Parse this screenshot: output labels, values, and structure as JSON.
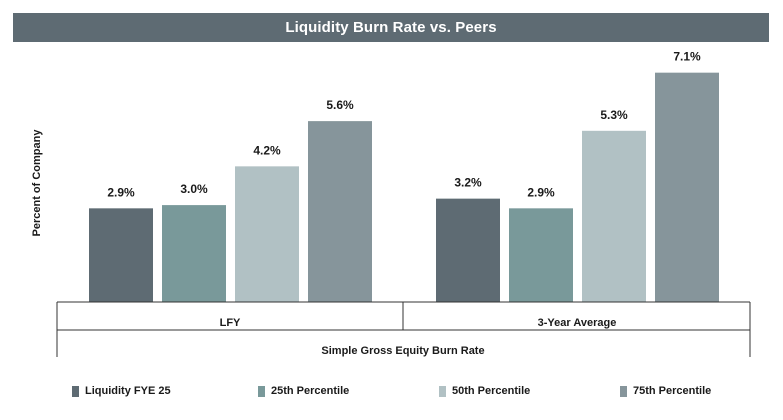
{
  "chart_data": {
    "type": "bar",
    "title": "Liquidity Burn Rate vs. Peers",
    "ylabel": "Percent of Company",
    "xlabel": "Simple Gross Equity Burn Rate",
    "categories": [
      "LFY",
      "3-Year Average"
    ],
    "series": [
      {
        "name": "Liquidity FYE 25",
        "values": [
          2.9,
          3.2
        ],
        "labels": [
          "2.9%",
          "3.2%"
        ],
        "color": "#5e6b73"
      },
      {
        "name": "25th Percentile",
        "values": [
          3.0,
          2.9
        ],
        "labels": [
          "3.0%",
          "2.9%"
        ],
        "color": "#79999a"
      },
      {
        "name": "50th Percentile",
        "values": [
          4.2,
          5.3
        ],
        "labels": [
          "4.2%",
          "5.3%"
        ],
        "color": "#b1c1c4"
      },
      {
        "name": "75th Percentile",
        "values": [
          5.6,
          7.1
        ],
        "labels": [
          "5.6%",
          "7.1%"
        ],
        "color": "#86959b"
      }
    ],
    "ylim": [
      0,
      7.1
    ],
    "grid": false,
    "legend_position": "bottom"
  }
}
